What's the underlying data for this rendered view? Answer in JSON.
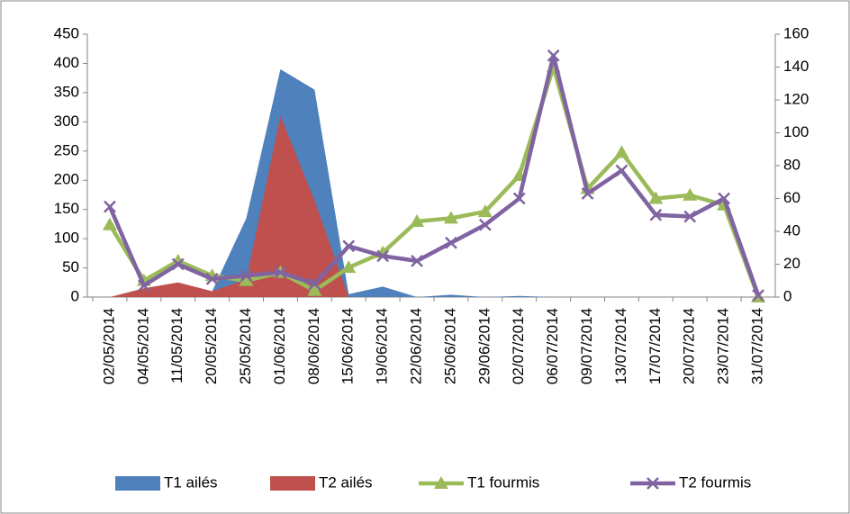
{
  "chart_data": {
    "type": "combo",
    "categories": [
      "02/05/2014",
      "04/05/2014",
      "11/05/2014",
      "20/05/2014",
      "25/05/2014",
      "01/06/2014",
      "08/06/2014",
      "15/06/2014",
      "19/06/2014",
      "22/06/2014",
      "25/06/2014",
      "29/06/2014",
      "02/07/2014",
      "06/07/2014",
      "09/07/2014",
      "13/07/2014",
      "17/07/2014",
      "20/07/2014",
      "23/07/2014",
      "31/07/2014"
    ],
    "series": [
      {
        "name": "T1 ailés",
        "type": "area",
        "color": "#4f81bd",
        "values": [
          0,
          5,
          10,
          10,
          135,
          390,
          355,
          5,
          18,
          0,
          4,
          0,
          2,
          0,
          0,
          0,
          0,
          0,
          0,
          0
        ]
      },
      {
        "name": "T2 ailés",
        "type": "area",
        "color": "#c0504d",
        "values": [
          0,
          15,
          25,
          10,
          30,
          310,
          165,
          0,
          0,
          0,
          0,
          0,
          0,
          0,
          0,
          0,
          0,
          0,
          0,
          0
        ]
      },
      {
        "name": "T1 fourmis",
        "type": "line",
        "marker": "triangle",
        "axis": "y2",
        "color": "#9bbb59",
        "values": [
          44,
          10,
          22,
          13,
          10,
          15,
          4,
          18,
          27,
          46,
          48,
          52,
          74,
          140,
          66,
          88,
          60,
          62,
          56,
          0
        ]
      },
      {
        "name": "T2 fourmis",
        "type": "line",
        "marker": "x",
        "axis": "y2",
        "color": "#8064a2",
        "values": [
          55,
          7,
          20,
          11,
          13,
          15,
          8,
          31,
          25,
          22,
          33,
          44,
          60,
          147,
          63,
          77,
          50,
          49,
          60,
          1
        ]
      }
    ],
    "ylim": [
      0,
      450
    ],
    "yticks": [
      0,
      50,
      100,
      150,
      200,
      250,
      300,
      350,
      400,
      450
    ],
    "y2lim": [
      0,
      160
    ],
    "y2ticks": [
      0,
      20,
      40,
      60,
      80,
      100,
      120,
      140,
      160
    ],
    "legend": "bottom"
  }
}
